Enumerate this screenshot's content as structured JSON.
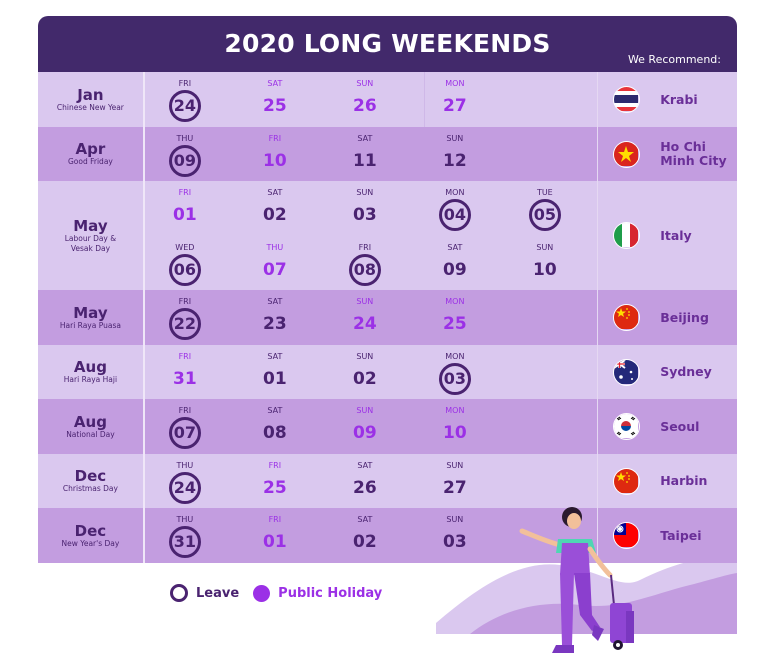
{
  "header": {
    "title": "2020 LONG WEEKENDS",
    "recommend_label": "We Recommend:"
  },
  "colors": {
    "header_bg": "#42296b",
    "row_light": "#dac8ef",
    "row_dark": "#c39de0",
    "text_dark": "#4a2370",
    "public_holiday": "#9b30e6",
    "city_text": "#6a2f98"
  },
  "rows": [
    {
      "month": "Jan",
      "holiday": "Chinese New Year",
      "shade": "light",
      "days": [
        {
          "dow": "FRI",
          "date": "24",
          "type": "leave"
        },
        {
          "dow": "SAT",
          "date": "25",
          "type": "ph"
        },
        {
          "dow": "SUN",
          "date": "26",
          "type": "ph"
        },
        {
          "dow": "MON",
          "date": "27",
          "type": "ph"
        }
      ],
      "recommend": {
        "city": "Krabi",
        "flag": "thailand-flag-icon"
      }
    },
    {
      "month": "Apr",
      "holiday": "Good Friday",
      "shade": "dark",
      "days": [
        {
          "dow": "THU",
          "date": "09",
          "type": "leave"
        },
        {
          "dow": "FRI",
          "date": "10",
          "type": "ph"
        },
        {
          "dow": "SAT",
          "date": "11",
          "type": "normal"
        },
        {
          "dow": "SUN",
          "date": "12",
          "type": "normal"
        }
      ],
      "recommend": {
        "city": "Ho Chi Minh City",
        "flag": "vietnam-flag-icon"
      }
    },
    {
      "month": "May",
      "holiday": "Labour Day & Vesak Day",
      "shade": "light",
      "days": [
        {
          "dow": "FRI",
          "date": "01",
          "type": "ph"
        },
        {
          "dow": "SAT",
          "date": "02",
          "type": "normal"
        },
        {
          "dow": "SUN",
          "date": "03",
          "type": "normal"
        },
        {
          "dow": "MON",
          "date": "04",
          "type": "leave"
        },
        {
          "dow": "TUE",
          "date": "05",
          "type": "leave"
        },
        {
          "dow": "WED",
          "date": "06",
          "type": "leave"
        },
        {
          "dow": "THU",
          "date": "07",
          "type": "ph"
        },
        {
          "dow": "FRI",
          "date": "08",
          "type": "leave"
        },
        {
          "dow": "SAT",
          "date": "09",
          "type": "normal"
        },
        {
          "dow": "SUN",
          "date": "10",
          "type": "normal"
        }
      ],
      "recommend": {
        "city": "Italy",
        "flag": "italy-flag-icon"
      }
    },
    {
      "month": "May",
      "holiday": "Hari Raya Puasa",
      "shade": "dark",
      "days": [
        {
          "dow": "FRI",
          "date": "22",
          "type": "leave"
        },
        {
          "dow": "SAT",
          "date": "23",
          "type": "normal"
        },
        {
          "dow": "SUN",
          "date": "24",
          "type": "ph"
        },
        {
          "dow": "MON",
          "date": "25",
          "type": "ph"
        }
      ],
      "recommend": {
        "city": "Beijing",
        "flag": "china-flag-icon"
      }
    },
    {
      "month": "Aug",
      "holiday": "Hari Raya Haji",
      "shade": "light",
      "days": [
        {
          "dow": "FRI",
          "date": "31",
          "type": "ph"
        },
        {
          "dow": "SAT",
          "date": "01",
          "type": "normal"
        },
        {
          "dow": "SUN",
          "date": "02",
          "type": "normal"
        },
        {
          "dow": "MON",
          "date": "03",
          "type": "leave"
        }
      ],
      "recommend": {
        "city": "Sydney",
        "flag": "australia-flag-icon"
      }
    },
    {
      "month": "Aug",
      "holiday": "National Day",
      "shade": "dark",
      "days": [
        {
          "dow": "FRI",
          "date": "07",
          "type": "leave"
        },
        {
          "dow": "SAT",
          "date": "08",
          "type": "normal"
        },
        {
          "dow": "SUN",
          "date": "09",
          "type": "ph"
        },
        {
          "dow": "MON",
          "date": "10",
          "type": "ph"
        }
      ],
      "recommend": {
        "city": "Seoul",
        "flag": "south-korea-flag-icon"
      }
    },
    {
      "month": "Dec",
      "holiday": "Christmas Day",
      "shade": "light",
      "days": [
        {
          "dow": "THU",
          "date": "24",
          "type": "leave"
        },
        {
          "dow": "FRI",
          "date": "25",
          "type": "ph"
        },
        {
          "dow": "SAT",
          "date": "26",
          "type": "normal"
        },
        {
          "dow": "SUN",
          "date": "27",
          "type": "normal"
        }
      ],
      "recommend": {
        "city": "Harbin",
        "flag": "china-flag-icon"
      }
    },
    {
      "month": "Dec",
      "holiday": "New Year's Day",
      "shade": "dark",
      "days": [
        {
          "dow": "THU",
          "date": "31",
          "type": "leave"
        },
        {
          "dow": "FRI",
          "date": "01",
          "type": "ph"
        },
        {
          "dow": "SAT",
          "date": "02",
          "type": "normal"
        },
        {
          "dow": "SUN",
          "date": "03",
          "type": "normal"
        }
      ],
      "recommend": {
        "city": "Taipei",
        "flag": "taiwan-flag-icon"
      }
    }
  ],
  "legend": {
    "leave_label": "Leave",
    "public_holiday_label": "Public Holiday"
  }
}
